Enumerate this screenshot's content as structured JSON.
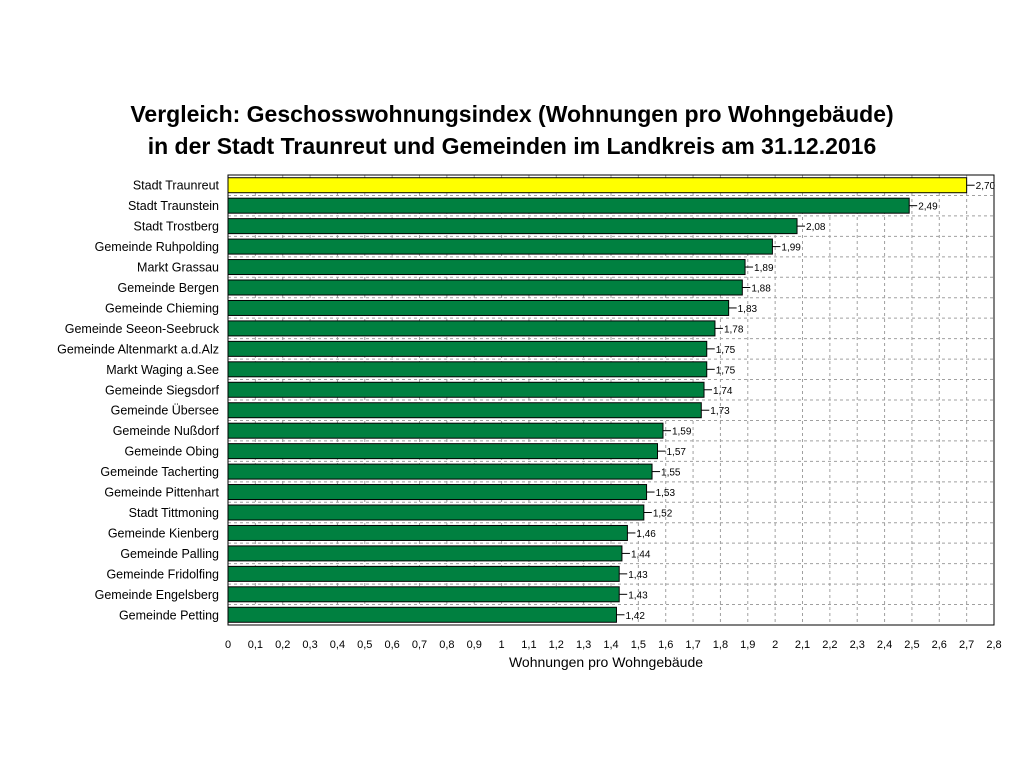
{
  "chart_data": {
    "type": "bar",
    "orientation": "horizontal",
    "title_lines": [
      "Vergleich: Geschosswohnungsindex (Wohnungen pro Wohngebäude)",
      "in der Stadt Traunreut und Gemeinden im Landkreis am 31.12.2016"
    ],
    "xlabel": "Wohnungen pro Wohngebäude",
    "ylabel": "",
    "xlim": [
      0,
      2.8
    ],
    "x_ticks": [
      "0",
      "0,1",
      "0,2",
      "0,3",
      "0,4",
      "0,5",
      "0,6",
      "0,7",
      "0,8",
      "0,9",
      "1",
      "1,1",
      "1,2",
      "1,3",
      "1,4",
      "1,5",
      "1,6",
      "1,7",
      "1,8",
      "1,9",
      "2",
      "2,1",
      "2,2",
      "2,3",
      "2,4",
      "2,5",
      "2,6",
      "2,7",
      "2,8"
    ],
    "grid": true,
    "colors": {
      "highlight": "#ffff00",
      "default": "#008040",
      "grid": "#a0a0a0"
    },
    "categories": [
      "Stadt Traunreut",
      "Stadt Traunstein",
      "Stadt Trostberg",
      "Gemeinde Ruhpolding",
      "Markt Grassau",
      "Gemeinde Bergen",
      "Gemeinde Chieming",
      "Gemeinde Seeon-Seebruck",
      "Gemeinde Altenmarkt a.d.Alz",
      "Markt Waging a.See",
      "Gemeinde Siegsdorf",
      "Gemeinde Übersee",
      "Gemeinde Nußdorf",
      "Gemeinde Obing",
      "Gemeinde Tacherting",
      "Gemeinde Pittenhart",
      "Stadt Tittmoning",
      "Gemeinde Kienberg",
      "Gemeinde Palling",
      "Gemeinde Fridolfing",
      "Gemeinde Engelsberg",
      "Gemeinde Petting"
    ],
    "values": [
      2.7,
      2.49,
      2.08,
      1.99,
      1.89,
      1.88,
      1.83,
      1.78,
      1.75,
      1.75,
      1.74,
      1.73,
      1.59,
      1.57,
      1.55,
      1.53,
      1.52,
      1.46,
      1.44,
      1.43,
      1.43,
      1.42
    ],
    "value_labels": [
      "2,70",
      "2,49",
      "2,08",
      "1,99",
      "1,89",
      "1,88",
      "1,83",
      "1,78",
      "1,75",
      "1,75",
      "1,74",
      "1,73",
      "1,59",
      "1,57",
      "1,55",
      "1,53",
      "1,52",
      "1,46",
      "1,44",
      "1,43",
      "1,43",
      "1,42"
    ],
    "highlight_index": 0
  }
}
